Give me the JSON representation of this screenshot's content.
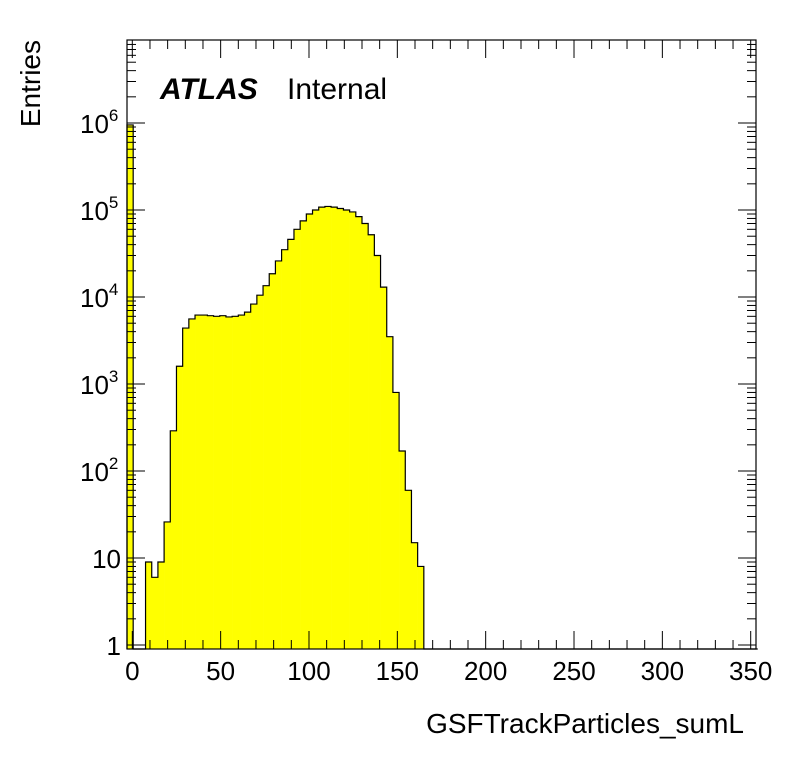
{
  "chart_data": {
    "type": "bar",
    "style": "histogram-step",
    "xlabel": "GSFTrackParticles_sumL",
    "ylabel": "Entries",
    "annotation": {
      "bold": "ATLAS",
      "normal": "Internal"
    },
    "xlim": [
      -3,
      353
    ],
    "ylim": [
      0.9,
      9000000
    ],
    "yscale": "log",
    "x_ticks": [
      0,
      50,
      100,
      150,
      200,
      250,
      300,
      350
    ],
    "x_tick_labels": [
      "0",
      "50",
      "100",
      "150",
      "200",
      "250",
      "300",
      "350"
    ],
    "y_ticks": [
      {
        "value": 1,
        "base": "1",
        "exp": ""
      },
      {
        "value": 10,
        "base": "10",
        "exp": ""
      },
      {
        "value": 100,
        "base": "10",
        "exp": "2"
      },
      {
        "value": 1000,
        "base": "10",
        "exp": "3"
      },
      {
        "value": 10000,
        "base": "10",
        "exp": "4"
      },
      {
        "value": 100000,
        "base": "10",
        "exp": "5"
      },
      {
        "value": 1000000,
        "base": "10",
        "exp": "6"
      }
    ],
    "fill_color": "#ffff00",
    "line_color": "#000000",
    "bin_width": 3.5,
    "bin_start": -3,
    "values": [
      950000,
      0,
      0,
      9,
      6,
      9,
      26,
      290,
      1600,
      4400,
      5600,
      6200,
      6200,
      6100,
      6000,
      6100,
      5900,
      6000,
      6200,
      6700,
      8300,
      10500,
      13500,
      18500,
      26000,
      35000,
      46000,
      60000,
      75000,
      90000,
      100000,
      108000,
      110000,
      108000,
      104000,
      100000,
      95000,
      84000,
      70000,
      52000,
      30000,
      13000,
      3500,
      800,
      170,
      60,
      15,
      8,
      0,
      0,
      0,
      0,
      0,
      0,
      0,
      0,
      0,
      0,
      0,
      0,
      0,
      0,
      0,
      0,
      0,
      0,
      0,
      0,
      0,
      0,
      0,
      0,
      0,
      0,
      0,
      0,
      0,
      0,
      0,
      0,
      0,
      0,
      0,
      0,
      0,
      0,
      0,
      0,
      0,
      0,
      0,
      0,
      0,
      0,
      0,
      0,
      0,
      0,
      0,
      0,
      0,
      0
    ]
  }
}
